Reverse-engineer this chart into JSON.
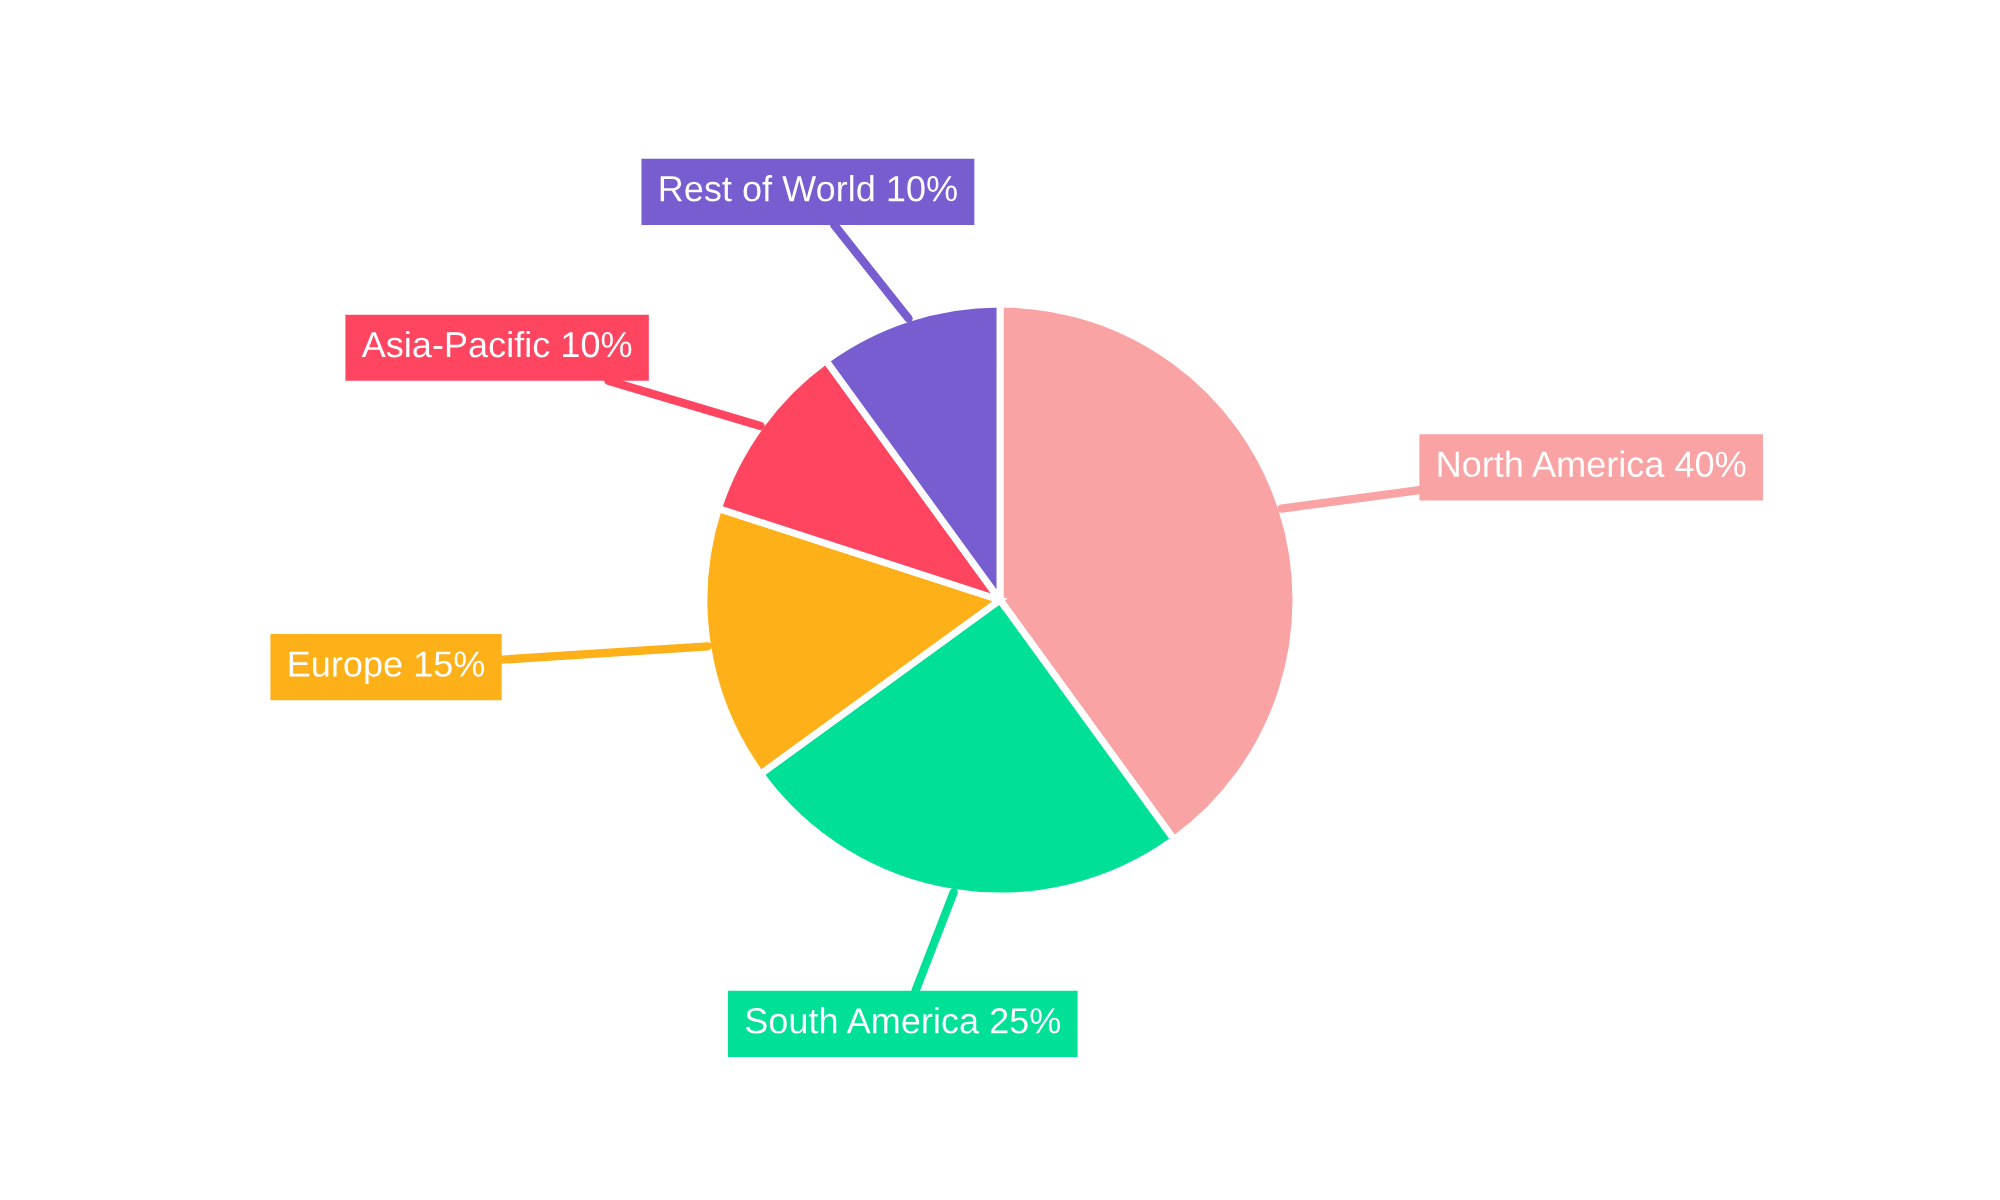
{
  "chart_data": {
    "type": "pie",
    "categories": [
      "North America",
      "South America",
      "Europe",
      "Asia-Pacific",
      "Rest of World"
    ],
    "values": [
      40,
      25,
      15,
      10,
      10
    ],
    "value_labels": [
      "40%",
      "25%",
      "15%",
      "10%",
      "10%"
    ],
    "colors": [
      "#f9a3a4",
      "#00e096",
      "#feb019",
      "#ff4560",
      "#775dd0"
    ],
    "legend": false
  }
}
